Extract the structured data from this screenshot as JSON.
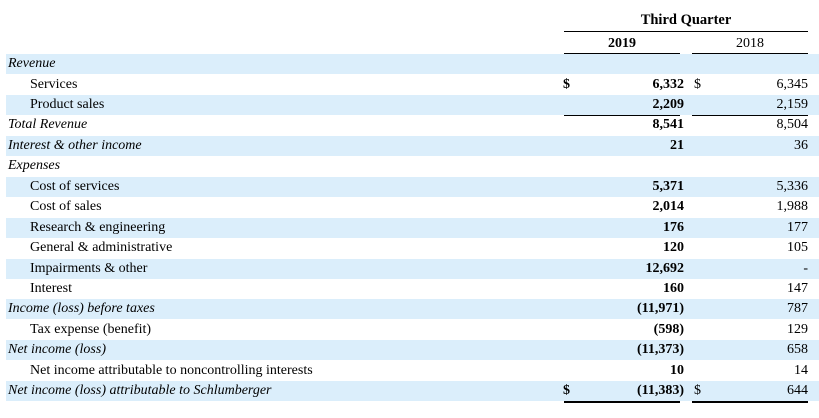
{
  "header": {
    "period": "Third Quarter",
    "col_2019": "2019",
    "col_2018": "2018"
  },
  "rows": [
    {
      "label": "Revenue",
      "italic": true,
      "indent": false,
      "v2019": "",
      "v2018": "",
      "cur2019": "",
      "cur2018": ""
    },
    {
      "label": "Services",
      "italic": false,
      "indent": true,
      "v2019": "6,332",
      "v2018": "6,345",
      "cur2019": "$",
      "cur2018": "$"
    },
    {
      "label": "Product sales",
      "italic": false,
      "indent": true,
      "v2019": "2,209",
      "v2018": "2,159",
      "cur2019": "",
      "cur2018": ""
    },
    {
      "label": "Total Revenue",
      "italic": true,
      "indent": false,
      "v2019": "8,541",
      "v2018": "8,504",
      "cur2019": "",
      "cur2018": ""
    },
    {
      "label": "Interest & other income",
      "italic": true,
      "indent": false,
      "v2019": "21",
      "v2018": "36",
      "cur2019": "",
      "cur2018": ""
    },
    {
      "label": "Expenses",
      "italic": true,
      "indent": false,
      "v2019": "",
      "v2018": "",
      "cur2019": "",
      "cur2018": ""
    },
    {
      "label": "Cost of services",
      "italic": false,
      "indent": true,
      "v2019": "5,371",
      "v2018": "5,336",
      "cur2019": "",
      "cur2018": ""
    },
    {
      "label": "Cost of sales",
      "italic": false,
      "indent": true,
      "v2019": "2,014",
      "v2018": "1,988",
      "cur2019": "",
      "cur2018": ""
    },
    {
      "label": "Research & engineering",
      "italic": false,
      "indent": true,
      "v2019": "176",
      "v2018": "177",
      "cur2019": "",
      "cur2018": ""
    },
    {
      "label": "General & administrative",
      "italic": false,
      "indent": true,
      "v2019": "120",
      "v2018": "105",
      "cur2019": "",
      "cur2018": ""
    },
    {
      "label": "Impairments & other",
      "italic": false,
      "indent": true,
      "v2019": "12,692",
      "v2018": "-",
      "cur2019": "",
      "cur2018": ""
    },
    {
      "label": "Interest",
      "italic": false,
      "indent": true,
      "v2019": "160",
      "v2018": "147",
      "cur2019": "",
      "cur2018": ""
    },
    {
      "label": "Income (loss) before taxes",
      "italic": true,
      "indent": false,
      "v2019": "(11,971)",
      "v2018": "787",
      "cur2019": "",
      "cur2018": ""
    },
    {
      "label": "Tax expense (benefit)",
      "italic": false,
      "indent": true,
      "v2019": "(598)",
      "v2018": "129",
      "cur2019": "",
      "cur2018": ""
    },
    {
      "label": "Net income (loss)",
      "italic": true,
      "indent": false,
      "v2019": "(11,373)",
      "v2018": "658",
      "cur2019": "",
      "cur2018": ""
    },
    {
      "label": "Net income attributable to noncontrolling interests",
      "italic": false,
      "indent": true,
      "v2019": "10",
      "v2018": "14",
      "cur2019": "",
      "cur2018": ""
    },
    {
      "label": "Net income (loss) attributable to Schlumberger",
      "italic": true,
      "indent": false,
      "v2019": "(11,383)",
      "v2018": "644",
      "cur2019": "$",
      "cur2018": "$"
    }
  ]
}
